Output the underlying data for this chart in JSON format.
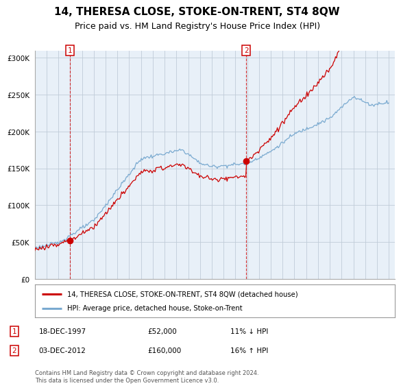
{
  "title": "14, THERESA CLOSE, STOKE-ON-TRENT, ST4 8QW",
  "subtitle": "Price paid vs. HM Land Registry's House Price Index (HPI)",
  "ylim": [
    0,
    310000
  ],
  "yticks": [
    0,
    50000,
    100000,
    150000,
    200000,
    250000,
    300000
  ],
  "x_start_year": 1995,
  "x_end_year": 2025,
  "sale1_date": 1997.96,
  "sale1_price": 52000,
  "sale2_date": 2012.92,
  "sale2_price": 160000,
  "line_color_property": "#cc0000",
  "line_color_hpi": "#7aaad0",
  "marker_color": "#cc0000",
  "dashed_color": "#cc0000",
  "plot_bg_color": "#e8f0f8",
  "grid_color": "#c0ccd8",
  "legend_label_property": "14, THERESA CLOSE, STOKE-ON-TRENT, ST4 8QW (detached house)",
  "legend_label_hpi": "HPI: Average price, detached house, Stoke-on-Trent",
  "annotation1_date": "18-DEC-1997",
  "annotation1_price": "£52,000",
  "annotation1_hpi": "11% ↓ HPI",
  "annotation2_date": "03-DEC-2012",
  "annotation2_price": "£160,000",
  "annotation2_hpi": "16% ↑ HPI",
  "footer": "Contains HM Land Registry data © Crown copyright and database right 2024.\nThis data is licensed under the Open Government Licence v3.0.",
  "bg_color": "#ffffff",
  "title_fontsize": 11,
  "subtitle_fontsize": 9
}
